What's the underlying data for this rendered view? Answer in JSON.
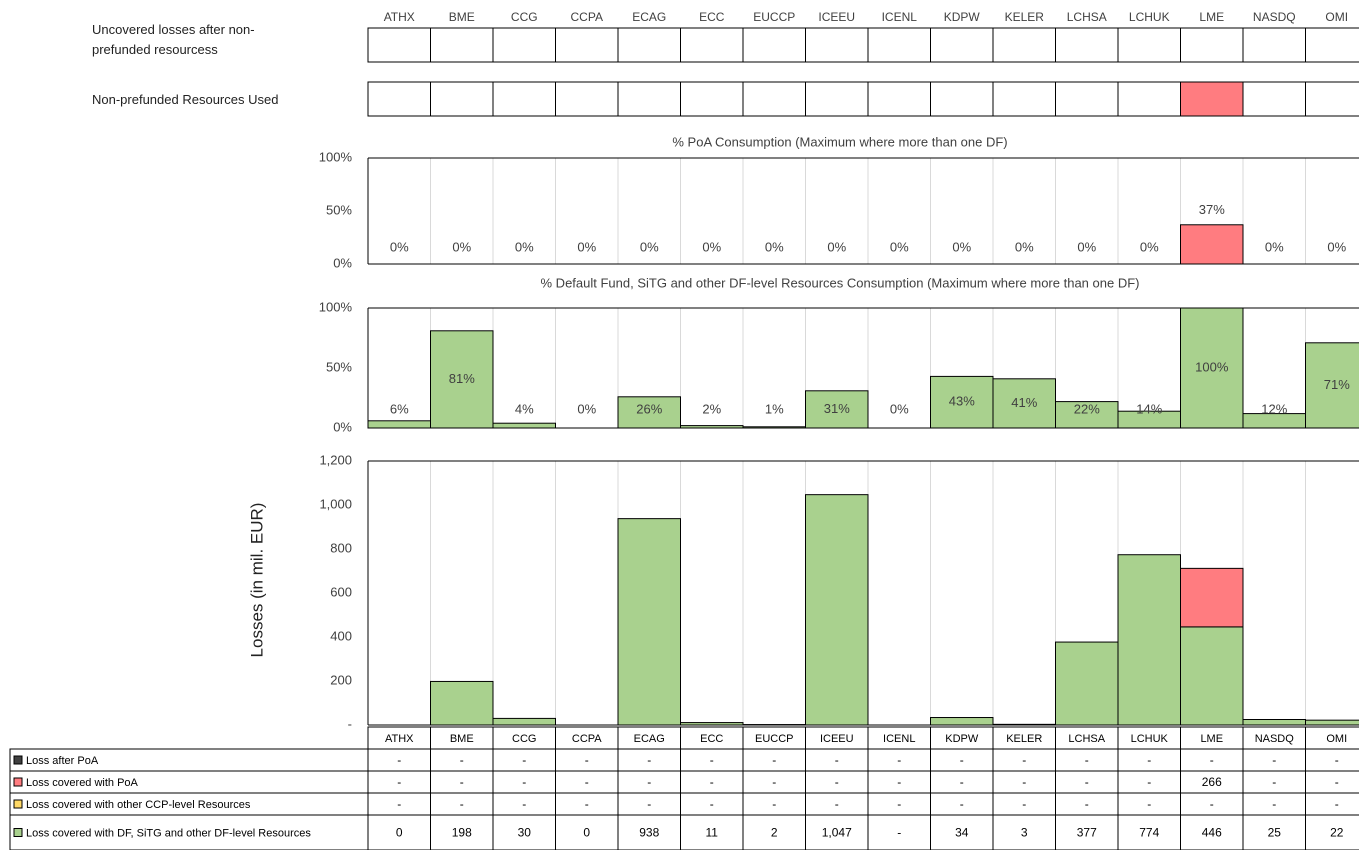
{
  "chart_data": [
    {
      "type": "status",
      "categories": [
        "ATHX",
        "BME",
        "CCG",
        "CCPA",
        "ECAG",
        "ECC",
        "EUCCP",
        "ICEEU",
        "ICENL",
        "KDPW",
        "KELER",
        "LCHSA",
        "LCHUK",
        "LME",
        "NASDQ",
        "OMI"
      ],
      "color": "#ff7c80",
      "rows": [
        {
          "label": "Uncovered losses after non-prefunded resourcess",
          "flags": [
            false,
            false,
            false,
            false,
            false,
            false,
            false,
            false,
            false,
            false,
            false,
            false,
            false,
            false,
            false,
            false
          ]
        },
        {
          "label": "Non-prefunded Resources Used",
          "flags": [
            false,
            false,
            false,
            false,
            false,
            false,
            false,
            false,
            false,
            false,
            false,
            false,
            false,
            true,
            false,
            false
          ]
        }
      ]
    },
    {
      "type": "bar",
      "title": "% PoA Consumption (Maximum where more than one DF)",
      "color": "#ff7c80",
      "ylim": [
        0,
        100
      ],
      "yticks": [
        {
          "value": 0,
          "label": "0%"
        },
        {
          "value": 50,
          "label": "50%"
        },
        {
          "value": 100,
          "label": "100%"
        }
      ],
      "values": [
        0,
        0,
        0,
        0,
        0,
        0,
        0,
        0,
        0,
        0,
        0,
        0,
        0,
        37,
        0,
        0
      ],
      "value_labels": [
        "0%",
        "0%",
        "0%",
        "0%",
        "0%",
        "0%",
        "0%",
        "0%",
        "0%",
        "0%",
        "0%",
        "0%",
        "0%",
        "37%",
        "0%",
        "0%"
      ]
    },
    {
      "type": "bar",
      "title": "% Default Fund, SiTG and other DF-level Resources Consumption (Maximum where more than one DF)",
      "color": "#a9d18e",
      "ylim": [
        0,
        100
      ],
      "yticks": [
        {
          "value": 0,
          "label": "0%"
        },
        {
          "value": 50,
          "label": "50%"
        },
        {
          "value": 100,
          "label": "100%"
        }
      ],
      "values": [
        6,
        81,
        4,
        0,
        26,
        2,
        1,
        31,
        0,
        43,
        41,
        22,
        14,
        100,
        12,
        71
      ],
      "value_labels": [
        "6%",
        "81%",
        "4%",
        "0%",
        "26%",
        "2%",
        "1%",
        "31%",
        "0%",
        "43%",
        "41%",
        "22%",
        "14%",
        "100%",
        "12%",
        "71%"
      ]
    },
    {
      "type": "stacked_bar",
      "y_label": "Losses (in mil. EUR)",
      "categories": [
        "ATHX",
        "BME",
        "CCG",
        "CCPA",
        "ECAG",
        "ECC",
        "EUCCP",
        "ICEEU",
        "ICENL",
        "KDPW",
        "KELER",
        "LCHSA",
        "LCHUK",
        "LME",
        "NASDQ",
        "OMI"
      ],
      "ylim": [
        0,
        1200
      ],
      "yticks": [
        {
          "value": 0,
          "label": "-"
        },
        200,
        400,
        600,
        800,
        {
          "value": 1000,
          "label": "1,000"
        },
        {
          "value": 1200,
          "label": "1,200"
        }
      ],
      "series": [
        {
          "name": "Loss after PoA",
          "color": "#404040",
          "values": [
            0,
            0,
            0,
            0,
            0,
            0,
            0,
            0,
            0,
            0,
            0,
            0,
            0,
            0,
            0,
            0
          ],
          "value_labels": [
            "-",
            "-",
            "-",
            "-",
            "-",
            "-",
            "-",
            "-",
            "-",
            "-",
            "-",
            "-",
            "-",
            "-",
            "-",
            "-"
          ]
        },
        {
          "name": "Loss covered with PoA",
          "color": "#ff7c80",
          "values": [
            0,
            0,
            0,
            0,
            0,
            0,
            0,
            0,
            0,
            0,
            0,
            0,
            0,
            266,
            0,
            0
          ],
          "value_labels": [
            "-",
            "-",
            "-",
            "-",
            "-",
            "-",
            "-",
            "-",
            "-",
            "-",
            "-",
            "-",
            "-",
            "266",
            "-",
            "-"
          ]
        },
        {
          "name": "Loss covered with other CCP-level Resources",
          "color": "#ffd966",
          "values": [
            0,
            0,
            0,
            0,
            0,
            0,
            0,
            0,
            0,
            0,
            0,
            0,
            0,
            0,
            0,
            0
          ],
          "value_labels": [
            "-",
            "-",
            "-",
            "-",
            "-",
            "-",
            "-",
            "-",
            "-",
            "-",
            "-",
            "-",
            "-",
            "-",
            "-",
            "-"
          ]
        },
        {
          "name": "Loss covered with DF, SiTG and other DF-level Resources",
          "color": "#a9d18e",
          "values": [
            0,
            198,
            30,
            0,
            938,
            11,
            2,
            1047,
            0,
            34,
            3,
            377,
            774,
            446,
            25,
            22
          ],
          "value_labels": [
            "0",
            "198",
            "30",
            "0",
            "938",
            "11",
            "2",
            "1,047",
            "-",
            "34",
            "3",
            "377",
            "774",
            "446",
            "25",
            "22"
          ]
        }
      ]
    }
  ]
}
